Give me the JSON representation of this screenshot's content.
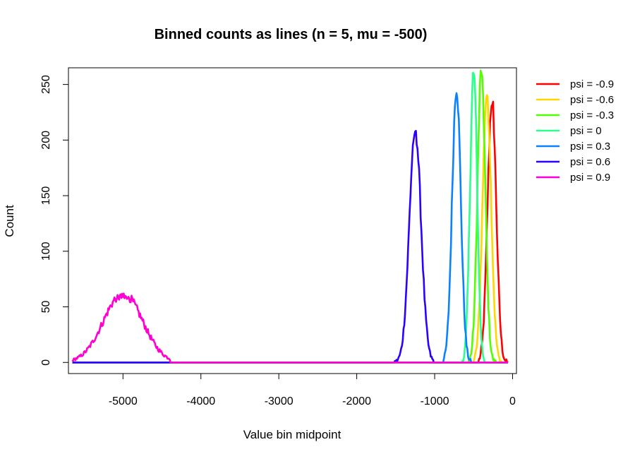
{
  "chart_data": {
    "type": "line",
    "title": "Binned counts as lines (n = 5, mu = -500)",
    "xlabel": "Value bin midpoint",
    "ylabel": "Count",
    "xlim": [
      -5700,
      50
    ],
    "ylim": [
      -10,
      265
    ],
    "x_ticks": [
      -5000,
      -4000,
      -3000,
      -2000,
      -1000,
      0
    ],
    "x_tick_labels": [
      "-5000",
      "-4000",
      "-3000",
      "-2000",
      "-1000",
      "0"
    ],
    "y_ticks": [
      0,
      50,
      100,
      150,
      200,
      250
    ],
    "y_tick_labels": [
      "0",
      "50",
      "100",
      "150",
      "200",
      "250"
    ],
    "grid": false,
    "legend_position": "outside-right",
    "baseline_x_range": [
      -5650,
      -60
    ],
    "series": [
      {
        "name": "psi = -0.9",
        "color": "#FF0000",
        "center": -265,
        "sd": 55,
        "peak": 237,
        "range": [
          -430,
          -60
        ],
        "noise": 18
      },
      {
        "name": "psi = -0.6",
        "color": "#FFD600",
        "center": -330,
        "sd": 55,
        "peak": 242,
        "range": [
          -500,
          -150
        ],
        "noise": 18
      },
      {
        "name": "psi = -0.3",
        "color": "#52FF00",
        "center": -400,
        "sd": 50,
        "peak": 264,
        "range": [
          -560,
          -220
        ],
        "noise": 20
      },
      {
        "name": "psi = 0",
        "color": "#2CFF8E",
        "center": -500,
        "sd": 45,
        "peak": 264,
        "range": [
          -650,
          -350
        ],
        "noise": 20
      },
      {
        "name": "psi = 0.3",
        "color": "#0A82FF",
        "center": -720,
        "sd": 55,
        "peak": 249,
        "range": [
          -890,
          -540
        ],
        "noise": 18
      },
      {
        "name": "psi = 0.6",
        "color": "#2E00FF",
        "center": -1250,
        "sd": 75,
        "peak": 210,
        "range": [
          -1520,
          -1020
        ],
        "noise": 15
      },
      {
        "name": "psi = 0.9",
        "color": "#FF00D2",
        "center": -5000,
        "sd": 250,
        "peak": 62,
        "range": [
          -5650,
          -4400
        ],
        "noise": 8
      }
    ]
  }
}
